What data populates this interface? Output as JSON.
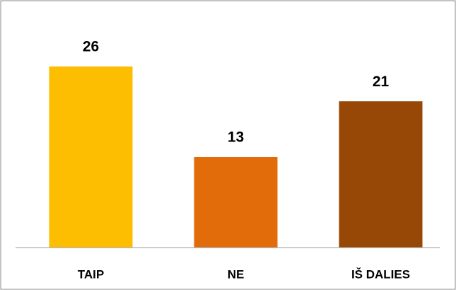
{
  "chart_data": {
    "type": "bar",
    "categories": [
      "TAIP",
      "NE",
      "IŠ DALIES"
    ],
    "values": [
      26,
      13,
      21
    ],
    "colors": [
      "#fdbd00",
      "#e36c0a",
      "#974806"
    ],
    "ylim": [
      0,
      30
    ]
  }
}
